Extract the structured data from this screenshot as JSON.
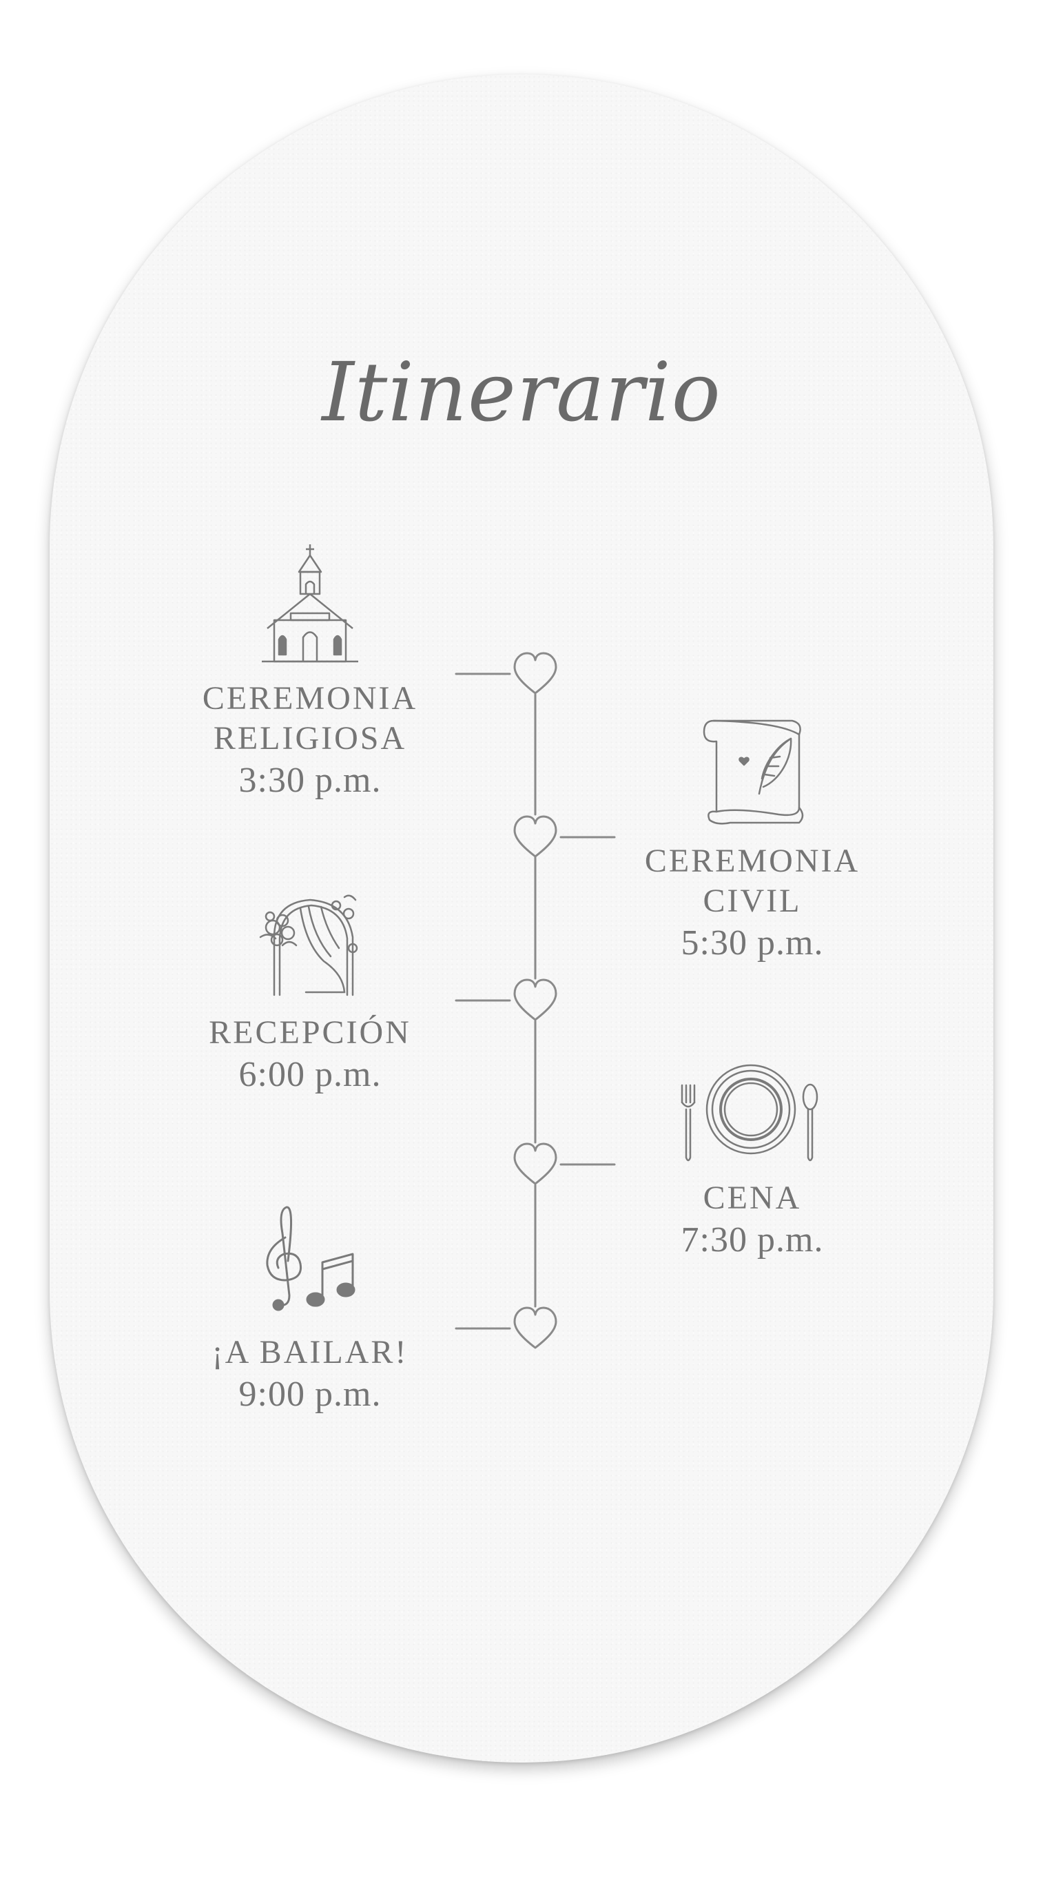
{
  "title": "Itinerario",
  "colors": {
    "ink": "#757575",
    "paper": "#f7f7f7",
    "background": "#ffffff"
  },
  "events": [
    {
      "name_line1": "CEREMONIA",
      "name_line2": "RELIGIOSA",
      "time": "3:30 p.m.",
      "side": "left",
      "icon": "church-icon"
    },
    {
      "name_line1": "CEREMONIA",
      "name_line2": "CIVIL",
      "time": "5:30 p.m.",
      "side": "right",
      "icon": "scroll-quill-icon"
    },
    {
      "name_line1": "RECEPCIÓN",
      "time": "6:00 p.m.",
      "side": "left",
      "icon": "floral-arch-icon"
    },
    {
      "name_line1": "CENA",
      "time": "7:30 p.m.",
      "side": "right",
      "icon": "plate-cutlery-icon"
    },
    {
      "name_line1": "¡A BAILAR!",
      "time": "9:00 p.m.",
      "side": "left",
      "icon": "music-notes-icon"
    }
  ]
}
